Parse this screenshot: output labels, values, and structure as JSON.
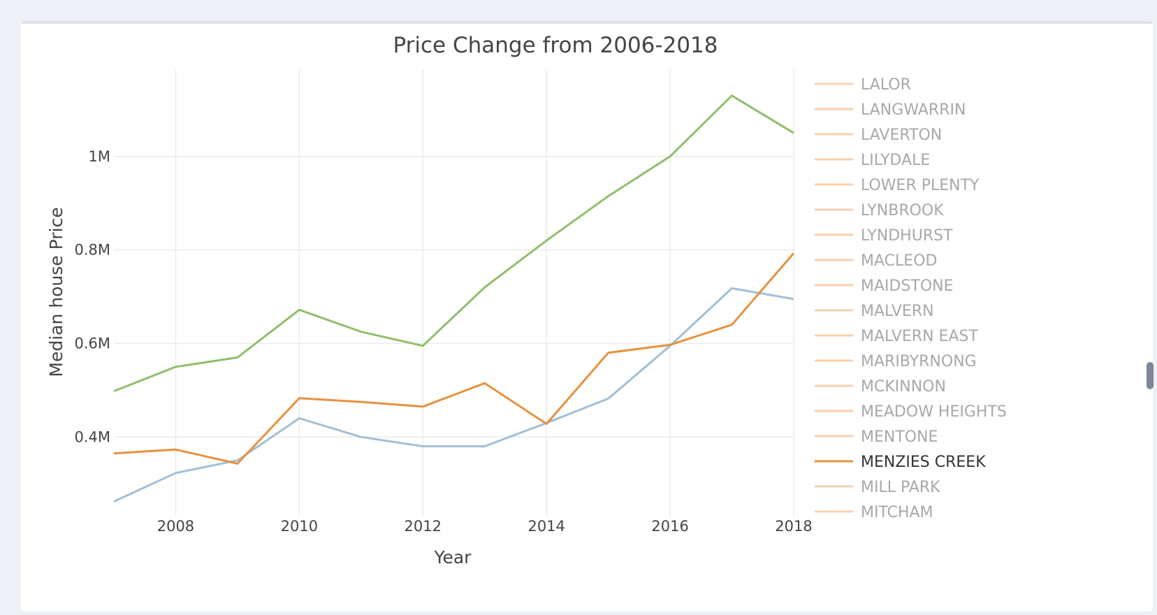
{
  "chart_data": {
    "type": "line",
    "title": "Price Change from 2006-2018",
    "xlabel": "Year",
    "ylabel": "Median house Price",
    "xlim": [
      2007,
      2018
    ],
    "ylim": [
      0.23,
      1.185
    ],
    "x_ticks": [
      {
        "value": 2008,
        "label": "2008"
      },
      {
        "value": 2010,
        "label": "2010"
      },
      {
        "value": 2012,
        "label": "2012"
      },
      {
        "value": 2014,
        "label": "2014"
      },
      {
        "value": 2016,
        "label": "2016"
      },
      {
        "value": 2018,
        "label": "2018"
      }
    ],
    "y_ticks": [
      {
        "value": 0.4,
        "label": "0.4M"
      },
      {
        "value": 0.6,
        "label": "0.6M"
      },
      {
        "value": 0.8,
        "label": "0.8M"
      },
      {
        "value": 1.0,
        "label": "1M"
      }
    ],
    "grid": true,
    "legend_position": "right",
    "series": [
      {
        "color": "#8ebf6a",
        "x": [
          2007,
          2008,
          2009,
          2010,
          2011,
          2012,
          2013,
          2014,
          2015,
          2016,
          2017,
          2018
        ],
        "values": [
          0.498,
          0.55,
          0.57,
          0.672,
          0.625,
          0.595,
          0.72,
          0.82,
          0.915,
          1.0,
          1.13,
          1.05
        ]
      },
      {
        "color": "#a1bfd6",
        "x": [
          2007,
          2008,
          2009,
          2010,
          2011,
          2012,
          2013,
          2014,
          2015,
          2016,
          2017,
          2018
        ],
        "values": [
          0.262,
          0.323,
          0.35,
          0.44,
          0.4,
          0.38,
          0.38,
          0.43,
          0.482,
          0.595,
          0.718,
          0.695
        ]
      },
      {
        "name": "MENZIES CREEK",
        "color": "#e8913f",
        "x": [
          2007,
          2008,
          2009,
          2010,
          2011,
          2012,
          2013,
          2014,
          2015,
          2016,
          2017,
          2018
        ],
        "values": [
          0.365,
          0.373,
          0.343,
          0.483,
          0.475,
          0.465,
          0.515,
          0.428,
          0.58,
          0.597,
          0.64,
          0.793
        ]
      }
    ],
    "legend_items": [
      {
        "label": "LALOR",
        "active": false
      },
      {
        "label": "LANGWARRIN",
        "active": false
      },
      {
        "label": "LAVERTON",
        "active": false
      },
      {
        "label": "LILYDALE",
        "active": false
      },
      {
        "label": "LOWER PLENTY",
        "active": false
      },
      {
        "label": "LYNBROOK",
        "active": false
      },
      {
        "label": "LYNDHURST",
        "active": false
      },
      {
        "label": "MACLEOD",
        "active": false
      },
      {
        "label": "MAIDSTONE",
        "active": false
      },
      {
        "label": "MALVERN",
        "active": false
      },
      {
        "label": "MALVERN EAST",
        "active": false
      },
      {
        "label": "MARIBYRNONG",
        "active": false
      },
      {
        "label": "MCKINNON",
        "active": false
      },
      {
        "label": "MEADOW HEIGHTS",
        "active": false
      },
      {
        "label": "MENTONE",
        "active": false
      },
      {
        "label": "MENZIES CREEK",
        "active": true
      },
      {
        "label": "MILL PARK",
        "active": false
      },
      {
        "label": "MITCHAM",
        "active": false
      }
    ],
    "colors": {
      "legend_active_line": "#e8913f",
      "legend_inactive_line": "#f7d2ac",
      "legend_active_text": "#333333",
      "legend_inactive_text": "#a8a8a8"
    }
  }
}
